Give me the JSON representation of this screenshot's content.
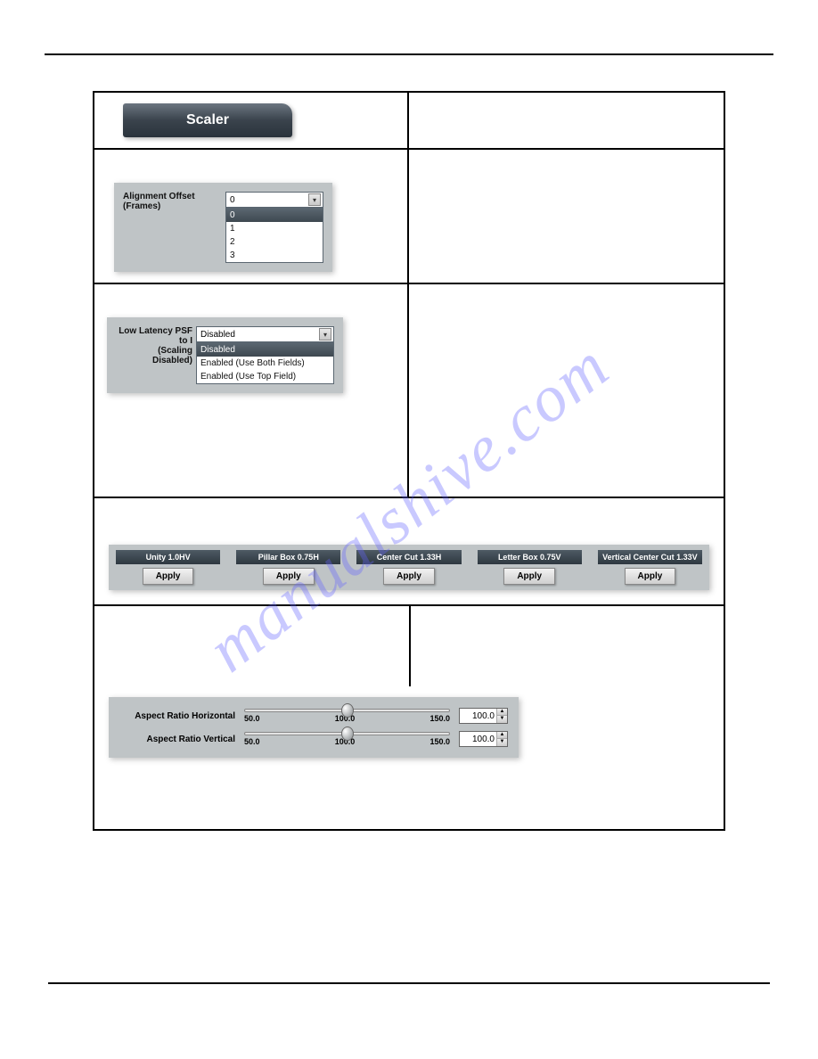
{
  "watermark": "manualshive.com",
  "title_bar": {
    "label": "Scaler",
    "bg_gradient": [
      "#6b7580",
      "#2a333c"
    ],
    "text_color": "#ffffff"
  },
  "alignment_offset": {
    "label": "Alignment Offset (Frames)",
    "selected": "0",
    "options": [
      "0",
      "1",
      "2",
      "3"
    ],
    "panel_bg": "#bfc4c6"
  },
  "low_latency": {
    "label_line1": "Low Latency PSF to I",
    "label_line2": "(Scaling Disabled)",
    "selected": "Disabled",
    "options": [
      "Disabled",
      "Enabled (Use Both Fields)",
      "Enabled (Use Top Field)"
    ],
    "panel_bg": "#bfc4c6"
  },
  "presets": {
    "items": [
      {
        "header": "Unity 1.0HV",
        "button": "Apply"
      },
      {
        "header": "Pillar Box 0.75H",
        "button": "Apply"
      },
      {
        "header": "Center Cut 1.33H",
        "button": "Apply"
      },
      {
        "header": "Letter Box 0.75V",
        "button": "Apply"
      },
      {
        "header": "Vertical Center Cut 1.33V",
        "button": "Apply"
      }
    ],
    "header_bg": [
      "#4e5a64",
      "#2e3840"
    ],
    "header_color": "#ffffff",
    "panel_bg": "#bfc4c6"
  },
  "sliders": {
    "horizontal": {
      "label": "Aspect Ratio Horizontal",
      "min": 50.0,
      "mid": 100.0,
      "max": 150.0,
      "min_label": "50.0",
      "mid_label": "100.0",
      "max_label": "150.0",
      "value": "100.0",
      "thumb_percent": 50
    },
    "vertical": {
      "label": "Aspect Ratio Vertical",
      "min": 50.0,
      "mid": 100.0,
      "max": 150.0,
      "min_label": "50.0",
      "mid_label": "100.0",
      "max_label": "150.0",
      "value": "100.0",
      "thumb_percent": 50
    },
    "panel_bg": "#bfc4c6"
  },
  "colors": {
    "page_bg": "#ffffff",
    "rule": "#000000",
    "panel_bg": "#bfc4c6",
    "listbox_sel_bg": "#4a555f",
    "listbox_sel_fg": "#ffffff"
  }
}
